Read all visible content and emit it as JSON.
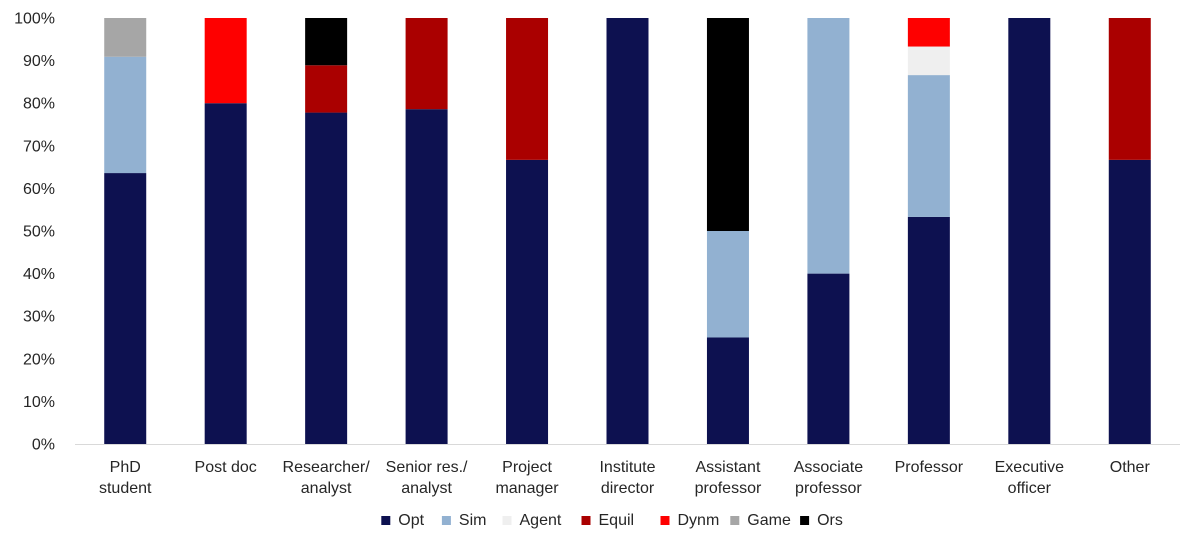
{
  "chart_data": {
    "type": "bar",
    "stacked": true,
    "percent": true,
    "categories": [
      [
        "PhD",
        "student"
      ],
      [
        "Post doc"
      ],
      [
        "Researcher/",
        "analyst"
      ],
      [
        "Senior res./",
        "analyst"
      ],
      [
        "Project",
        "manager"
      ],
      [
        "Institute",
        "director"
      ],
      [
        "Assistant",
        "professor"
      ],
      [
        "Associate",
        "professor"
      ],
      [
        "Professor"
      ],
      [
        "Executive",
        "officer"
      ],
      [
        "Other"
      ]
    ],
    "series": [
      {
        "name": "Opt",
        "color": "#0d1150",
        "values": [
          63.6,
          80,
          77.8,
          78.6,
          66.7,
          100,
          25,
          40,
          53.3,
          100,
          66.7
        ]
      },
      {
        "name": "Sim",
        "color": "#92b1d1",
        "values": [
          27.3,
          0,
          0,
          0,
          0,
          0,
          25,
          60,
          33.3,
          0,
          0
        ]
      },
      {
        "name": "Agent",
        "color": "#efefef",
        "values": [
          0,
          0,
          0,
          0,
          0,
          0,
          0,
          0,
          6.7,
          0,
          0
        ]
      },
      {
        "name": "Equil",
        "color": "#aa0000",
        "values": [
          0,
          0,
          11.1,
          21.4,
          33.3,
          0,
          0,
          0,
          0,
          0,
          33.3
        ]
      },
      {
        "name": "Dynm",
        "color": "#fe0000",
        "values": [
          0,
          20,
          0,
          0,
          0,
          0,
          0,
          0,
          6.7,
          0,
          0
        ]
      },
      {
        "name": "Game",
        "color": "#a6a6a6",
        "values": [
          9.1,
          0,
          0,
          0,
          0,
          0,
          0,
          0,
          0,
          0,
          0
        ]
      },
      {
        "name": "Ors",
        "color": "#000000",
        "values": [
          0,
          0,
          11.1,
          0,
          0,
          0,
          50,
          0,
          0,
          0,
          0
        ]
      }
    ],
    "ylim": [
      0,
      100
    ],
    "yticks": [
      "0%",
      "10%",
      "20%",
      "30%",
      "40%",
      "50%",
      "60%",
      "70%",
      "80%",
      "90%",
      "100%"
    ],
    "grid": false,
    "legend_position": "bottom",
    "title": "",
    "xlabel": "",
    "ylabel": ""
  }
}
